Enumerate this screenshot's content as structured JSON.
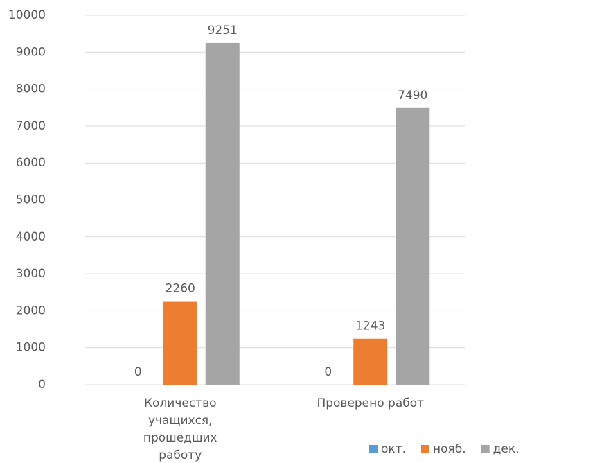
{
  "chart_data": {
    "type": "bar",
    "categories": [
      "Количество учащихся, прошедших работу",
      "Проверено работ"
    ],
    "series": [
      {
        "name": "окт.",
        "color": "#5b9bd5",
        "values": [
          0,
          0
        ]
      },
      {
        "name": "нояб.",
        "color": "#ed7d31",
        "values": [
          2260,
          1243
        ]
      },
      {
        "name": "дек.",
        "color": "#a5a5a5",
        "values": [
          9251,
          7490
        ]
      }
    ],
    "ylim": [
      0,
      10000
    ],
    "yticks": [
      0,
      1000,
      2000,
      3000,
      4000,
      5000,
      6000,
      7000,
      8000,
      9000,
      10000
    ],
    "grid": true,
    "data_labels": true,
    "legend": "bottom-right"
  }
}
